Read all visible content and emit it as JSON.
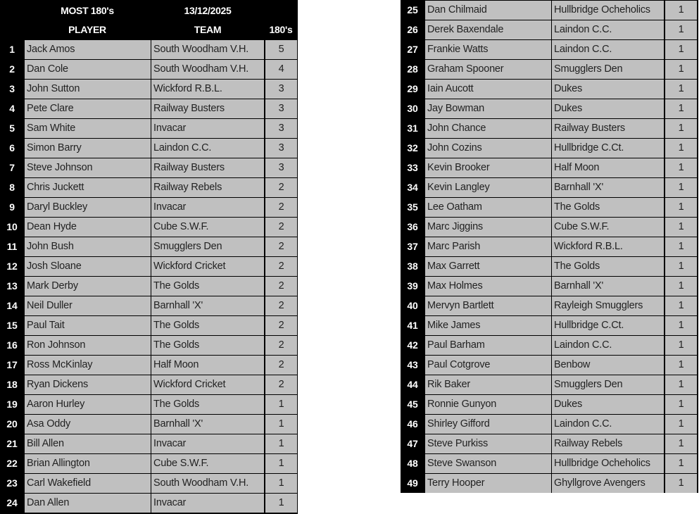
{
  "header": {
    "title": "MOST 180's",
    "date": "13/12/2025",
    "col_player": "PLAYER",
    "col_team": "TEAM",
    "col_count": "180's"
  },
  "rows": [
    {
      "rank": "1",
      "player": "Jack Amos",
      "team": "South Woodham V.H.",
      "count": "5"
    },
    {
      "rank": "2",
      "player": "Dan Cole",
      "team": "South Woodham V.H.",
      "count": "4"
    },
    {
      "rank": "3",
      "player": "John Sutton",
      "team": "Wickford R.B.L.",
      "count": "3"
    },
    {
      "rank": "4",
      "player": "Pete Clare",
      "team": "Railway Busters",
      "count": "3"
    },
    {
      "rank": "5",
      "player": "Sam White",
      "team": "Invacar",
      "count": "3"
    },
    {
      "rank": "6",
      "player": "Simon Barry",
      "team": "Laindon C.C.",
      "count": "3"
    },
    {
      "rank": "7",
      "player": "Steve Johnson",
      "team": "Railway Busters",
      "count": "3"
    },
    {
      "rank": "8",
      "player": "Chris Juckett",
      "team": "Railway Rebels",
      "count": "2"
    },
    {
      "rank": "9",
      "player": "Daryl Buckley",
      "team": "Invacar",
      "count": "2"
    },
    {
      "rank": "10",
      "player": "Dean Hyde",
      "team": "Cube S.W.F.",
      "count": "2"
    },
    {
      "rank": "11",
      "player": "John Bush",
      "team": "Smugglers Den",
      "count": "2"
    },
    {
      "rank": "12",
      "player": "Josh Sloane",
      "team": "Wickford Cricket",
      "count": "2"
    },
    {
      "rank": "13",
      "player": "Mark Derby",
      "team": "The Golds",
      "count": "2"
    },
    {
      "rank": "14",
      "player": "Neil Duller",
      "team": "Barnhall 'X'",
      "count": "2"
    },
    {
      "rank": "15",
      "player": "Paul Tait",
      "team": "The Golds",
      "count": "2"
    },
    {
      "rank": "16",
      "player": "Ron Johnson",
      "team": "The Golds",
      "count": "2"
    },
    {
      "rank": "17",
      "player": "Ross McKinlay",
      "team": "Half Moon",
      "count": "2"
    },
    {
      "rank": "18",
      "player": "Ryan Dickens",
      "team": "Wickford Cricket",
      "count": "2"
    },
    {
      "rank": "19",
      "player": "Aaron Hurley",
      "team": "The Golds",
      "count": "1"
    },
    {
      "rank": "20",
      "player": "Asa Oddy",
      "team": "Barnhall 'X'",
      "count": "1"
    },
    {
      "rank": "21",
      "player": "Bill Allen",
      "team": "Invacar",
      "count": "1"
    },
    {
      "rank": "22",
      "player": "Brian Allington",
      "team": "Cube S.W.F.",
      "count": "1"
    },
    {
      "rank": "23",
      "player": "Carl Wakefield",
      "team": "South Woodham V.H.",
      "count": "1"
    },
    {
      "rank": "24",
      "player": "Dan Allen",
      "team": "Invacar",
      "count": "1"
    },
    {
      "rank": "25",
      "player": "Dan Chilmaid",
      "team": "Hullbridge Ocheholics",
      "count": "1"
    },
    {
      "rank": "26",
      "player": "Derek Baxendale",
      "team": "Laindon C.C.",
      "count": "1"
    },
    {
      "rank": "27",
      "player": "Frankie Watts",
      "team": "Laindon C.C.",
      "count": "1"
    },
    {
      "rank": "28",
      "player": "Graham Spooner",
      "team": "Smugglers Den",
      "count": "1"
    },
    {
      "rank": "29",
      "player": "Iain Aucott",
      "team": "Dukes",
      "count": "1"
    },
    {
      "rank": "30",
      "player": "Jay Bowman",
      "team": "Dukes",
      "count": "1"
    },
    {
      "rank": "31",
      "player": "John Chance",
      "team": "Railway Busters",
      "count": "1"
    },
    {
      "rank": "32",
      "player": "John Cozins",
      "team": "Hullbridge C.Ct.",
      "count": "1"
    },
    {
      "rank": "33",
      "player": "Kevin Brooker",
      "team": "Half Moon",
      "count": "1"
    },
    {
      "rank": "34",
      "player": "Kevin Langley",
      "team": "Barnhall 'X'",
      "count": "1"
    },
    {
      "rank": "35",
      "player": "Lee Oatham",
      "team": "The Golds",
      "count": "1"
    },
    {
      "rank": "36",
      "player": "Marc Jiggins",
      "team": "Cube S.W.F.",
      "count": "1"
    },
    {
      "rank": "37",
      "player": "Marc Parish",
      "team": "Wickford R.B.L.",
      "count": "1"
    },
    {
      "rank": "38",
      "player": "Max Garrett",
      "team": "The Golds",
      "count": "1"
    },
    {
      "rank": "39",
      "player": "Max Holmes",
      "team": "Barnhall 'X'",
      "count": "1"
    },
    {
      "rank": "40",
      "player": "Mervyn Bartlett",
      "team": "Rayleigh Smugglers",
      "count": "1"
    },
    {
      "rank": "41",
      "player": "Mike James",
      "team": "Hullbridge C.Ct.",
      "count": "1"
    },
    {
      "rank": "42",
      "player": "Paul Barham",
      "team": "Laindon C.C.",
      "count": "1"
    },
    {
      "rank": "43",
      "player": "Paul Cotgrove",
      "team": "Benbow",
      "count": "1"
    },
    {
      "rank": "44",
      "player": "Rik Baker",
      "team": "Smugglers Den",
      "count": "1"
    },
    {
      "rank": "45",
      "player": "Ronnie Gunyon",
      "team": "Dukes",
      "count": "1"
    },
    {
      "rank": "46",
      "player": "Shirley Gifford",
      "team": "Laindon C.C.",
      "count": "1"
    },
    {
      "rank": "47",
      "player": "Steve Purkiss",
      "team": "Railway Rebels",
      "count": "1"
    },
    {
      "rank": "48",
      "player": "Steve Swanson",
      "team": "Hullbridge Ocheholics",
      "count": "1"
    },
    {
      "rank": "49",
      "player": "Terry Hooper",
      "team": "Ghyllgrove Avengers",
      "count": "1"
    }
  ]
}
